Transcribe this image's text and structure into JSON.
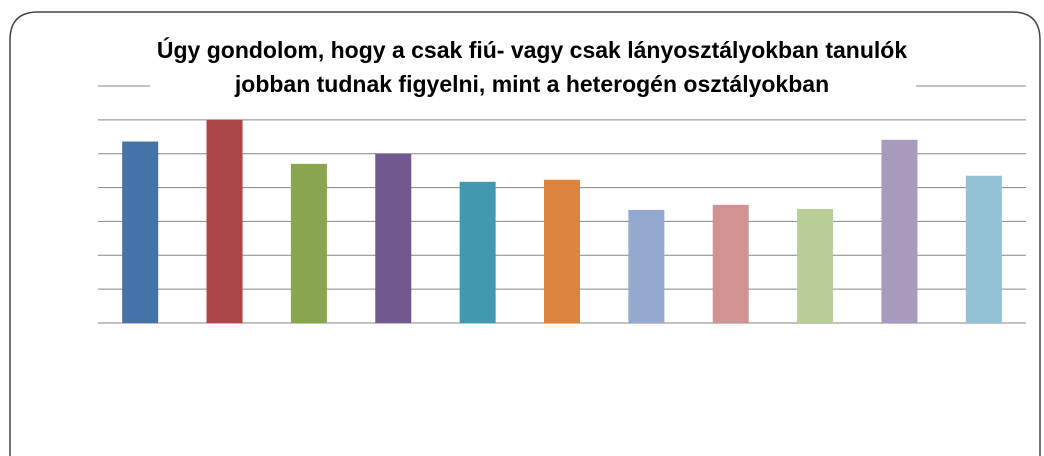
{
  "chart_data": {
    "type": "bar",
    "title": [
      "Úgy gondolom, hogy a csak fiú- vagy csak lányosztályokban tanulók",
      "jobban tudnak figyelni, mint a heterogén osztályokban"
    ],
    "categories": [
      null,
      null,
      null,
      null,
      null,
      null,
      null,
      null,
      null,
      null,
      null
    ],
    "values": [
      5.36,
      6.0,
      4.7,
      5.0,
      4.17,
      4.23,
      3.34,
      3.49,
      3.37,
      5.41,
      4.35
    ],
    "colors": [
      "#4572a7",
      "#aa4643",
      "#89a54e",
      "#71588f",
      "#4198af",
      "#db843d",
      "#93a9cf",
      "#d19392",
      "#b9cd96",
      "#a99bbd",
      "#91c3d5"
    ],
    "ylim": [
      0,
      7
    ],
    "yticks": [
      0,
      1,
      2,
      3,
      4,
      5,
      6,
      7
    ],
    "grid": true
  }
}
